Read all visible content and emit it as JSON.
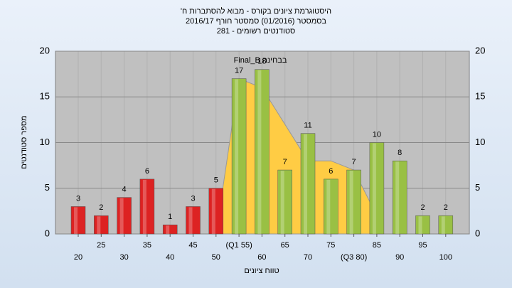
{
  "chart_data": {
    "type": "bar",
    "title": [
      "היסטוגרמת ציונים בקורס - מבוא להסתברות ח'",
      "בסמסטר (01/2016)  סמסטר חורף 2016/17",
      "סטודנטים רשומים - 281"
    ],
    "annotation": "Final_B בבחינה",
    "y_label": "מספר סטודנטים",
    "x_label": "טווח ציונים",
    "categories": [
      "20",
      "25",
      "30",
      "35",
      "40",
      "45",
      "50",
      "(Q1 55)",
      "60",
      "65",
      "70",
      "75",
      "(Q3 80)",
      "85",
      "90",
      "95",
      "100"
    ],
    "values": [
      3,
      2,
      4,
      6,
      1,
      3,
      5,
      17,
      18,
      7,
      11,
      6,
      7,
      10,
      8,
      2,
      2
    ],
    "colors": [
      "#dd2222",
      "#dd2222",
      "#dd2222",
      "#dd2222",
      "#dd2222",
      "#dd2222",
      "#dd2222",
      "#99c044",
      "#99c044",
      "#99c044",
      "#99c044",
      "#99c044",
      "#99c044",
      "#99c044",
      "#99c044",
      "#99c044",
      "#99c044"
    ],
    "curve": {
      "color": "#ffcc44",
      "values": [
        null,
        null,
        null,
        null,
        null,
        null,
        0,
        17,
        16,
        12,
        8,
        8,
        7,
        2,
        null,
        null,
        null
      ]
    },
    "ylim": [
      0,
      20
    ],
    "yticks": [
      0,
      5,
      10,
      15,
      20
    ],
    "grid": true
  }
}
